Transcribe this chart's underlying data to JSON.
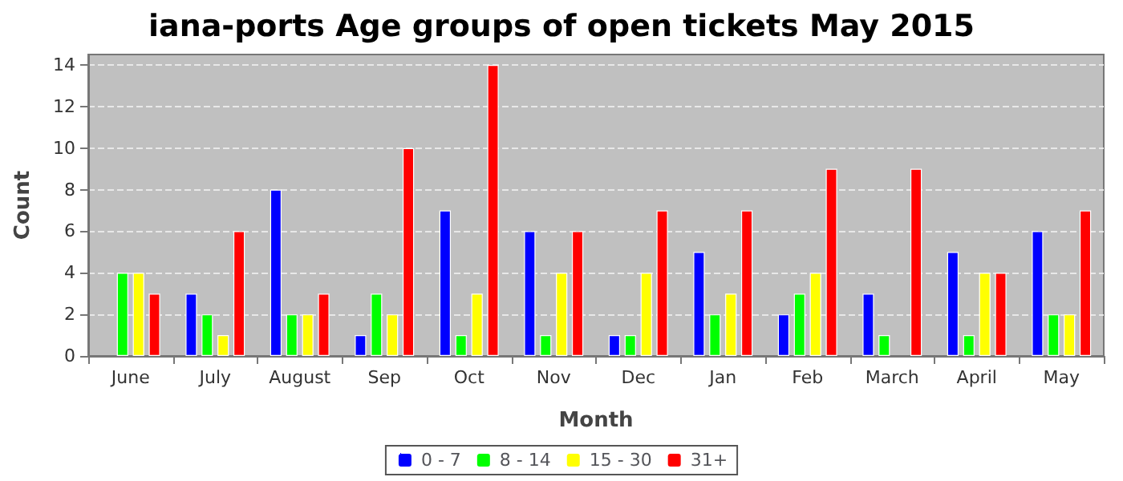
{
  "chart_data": {
    "type": "bar",
    "title": "iana-ports Age groups of open tickets May 2015",
    "xlabel": "Month",
    "ylabel": "Count",
    "categories": [
      "June",
      "July",
      "August",
      "Sep",
      "Oct",
      "Nov",
      "Dec",
      "Jan",
      "Feb",
      "March",
      "April",
      "May"
    ],
    "series": [
      {
        "name": "0 - 7",
        "color": "#0000ff",
        "values": [
          null,
          3,
          8,
          1,
          7,
          6,
          1,
          5,
          2,
          3,
          5,
          6
        ]
      },
      {
        "name": "8 - 14",
        "color": "#00ff00",
        "values": [
          4,
          2,
          2,
          3,
          1,
          1,
          1,
          2,
          3,
          1,
          1,
          2
        ]
      },
      {
        "name": "15 - 30",
        "color": "#ffff00",
        "values": [
          4,
          1,
          2,
          2,
          3,
          4,
          4,
          3,
          4,
          null,
          4,
          2
        ]
      },
      {
        "name": "31+",
        "color": "#ff0000",
        "values": [
          3,
          6,
          3,
          10,
          14,
          6,
          7,
          7,
          9,
          9,
          4,
          7
        ]
      }
    ],
    "ylim": [
      0,
      14.5
    ],
    "yticks": [
      0,
      2,
      4,
      6,
      8,
      10,
      12,
      14
    ],
    "grid": "y",
    "legend": "bottom"
  }
}
